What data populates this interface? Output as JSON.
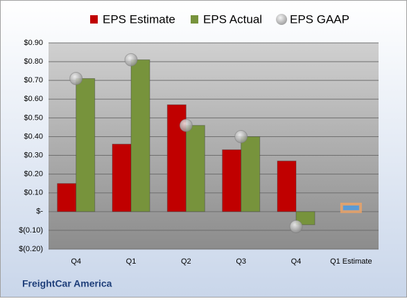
{
  "chart_data": {
    "type": "bar",
    "categories": [
      "Q4",
      "Q1",
      "Q2",
      "Q3",
      "Q4",
      "Q1 Estimate"
    ],
    "series": [
      {
        "name": "EPS Estimate",
        "color": "#c00000",
        "values": [
          0.15,
          0.36,
          0.57,
          0.33,
          0.27,
          0.04
        ],
        "forecast_color": "#5b9bd5"
      },
      {
        "name": "EPS Actual",
        "color": "#77933c",
        "values": [
          0.71,
          0.81,
          0.46,
          0.4,
          -0.07,
          null
        ]
      },
      {
        "name": "EPS GAAP",
        "color": "#a6a6a6",
        "type": "scatter",
        "values": [
          0.71,
          0.81,
          0.46,
          0.4,
          -0.08,
          null
        ]
      }
    ],
    "ylim": [
      -0.2,
      0.9
    ],
    "yticks": [
      {
        "value": -0.2,
        "label": "$(0.20)"
      },
      {
        "value": -0.1,
        "label": "$(0.10)"
      },
      {
        "value": 0,
        "label": "$-"
      },
      {
        "value": 0.1,
        "label": "$0.10"
      },
      {
        "value": 0.2,
        "label": "$0.20"
      },
      {
        "value": 0.3,
        "label": "$0.30"
      },
      {
        "value": 0.4,
        "label": "$0.40"
      },
      {
        "value": 0.5,
        "label": "$0.50"
      },
      {
        "value": 0.6,
        "label": "$0.60"
      },
      {
        "value": 0.7,
        "label": "$0.70"
      },
      {
        "value": 0.8,
        "label": "$0.80"
      },
      {
        "value": 0.9,
        "label": "$0.90"
      }
    ],
    "grid": true,
    "footer": "FreightCar America"
  }
}
